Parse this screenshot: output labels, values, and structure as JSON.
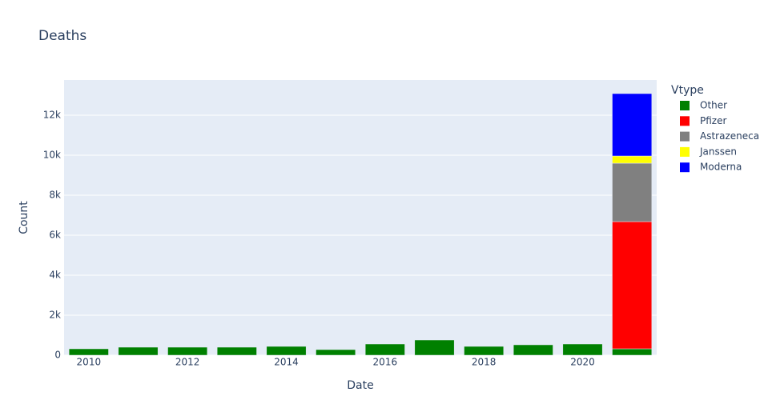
{
  "chart_data": {
    "type": "bar",
    "barmode": "stack",
    "title": "Deaths",
    "x_label": "Date",
    "y_label": "Count",
    "x": [
      2010,
      2011,
      2012,
      2013,
      2014,
      2015,
      2016,
      2017,
      2018,
      2019,
      2020,
      2021
    ],
    "series": [
      {
        "name": "Other",
        "color": "#008000",
        "values": [
          320,
          400,
          400,
          400,
          440,
          280,
          560,
          760,
          440,
          520,
          560,
          320
        ]
      },
      {
        "name": "Pfizer",
        "color": "#ff0000",
        "values": [
          null,
          null,
          null,
          null,
          null,
          null,
          null,
          null,
          null,
          null,
          null,
          6360
        ]
      },
      {
        "name": "Astrazeneca",
        "color": "#808080",
        "values": [
          null,
          null,
          null,
          null,
          null,
          null,
          null,
          null,
          null,
          null,
          null,
          2920
        ]
      },
      {
        "name": "Janssen",
        "color": "#ffff00",
        "values": [
          null,
          null,
          null,
          null,
          null,
          null,
          null,
          null,
          null,
          null,
          null,
          360
        ]
      },
      {
        "name": "Moderna",
        "color": "#0000ff",
        "values": [
          null,
          null,
          null,
          null,
          null,
          null,
          null,
          null,
          null,
          null,
          null,
          3120
        ]
      }
    ],
    "legend_title": "Vtype",
    "legend_position": "right",
    "xlim": [
      2009.5,
      2021.5
    ],
    "xticks": [
      2010,
      2012,
      2014,
      2016,
      2018,
      2020
    ],
    "ylim": [
      0,
      13760
    ],
    "yticks": [
      0,
      {
        "value": 2000,
        "label": "2k"
      },
      {
        "value": 4000,
        "label": "4k"
      },
      {
        "value": 6000,
        "label": "6k"
      },
      {
        "value": 8000,
        "label": "8k"
      },
      {
        "value": 10000,
        "label": "10k"
      },
      {
        "value": 12000,
        "label": "12k"
      }
    ],
    "grid": true
  }
}
